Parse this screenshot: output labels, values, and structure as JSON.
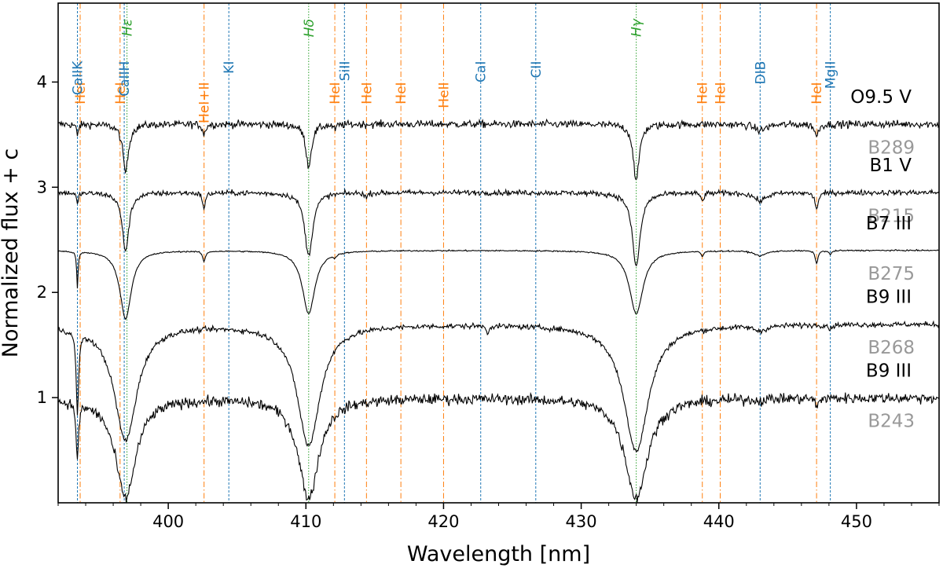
{
  "chart_data": {
    "type": "line",
    "xlabel": "Wavelength [nm]",
    "ylabel": "Normalized flux + c",
    "xlim": [
      392,
      456
    ],
    "ylim": [
      0,
      4.75
    ],
    "xticks": [
      400,
      410,
      420,
      430,
      440,
      450
    ],
    "yticks": [
      1,
      2,
      3,
      4
    ],
    "grid": false,
    "colors": {
      "spectrum": "#000000",
      "HeI": "#ff7f0e",
      "metal": "#1f77b4",
      "balmer": "#2ca02c",
      "star_id": "#999999"
    },
    "line_markers": [
      {
        "label": "HeI",
        "x": 393.6,
        "kind": "He",
        "y": 4.0
      },
      {
        "label": "CaIIK",
        "x": 393.4,
        "kind": "metal",
        "y": 4.2
      },
      {
        "label": "HeI",
        "x": 396.5,
        "kind": "He",
        "y": 4.0
      },
      {
        "label": "CaIIH",
        "x": 396.8,
        "kind": "metal",
        "y": 4.2
      },
      {
        "label": "Hε",
        "x": 397.0,
        "kind": "balmer",
        "y": 4.6
      },
      {
        "label": "HeI+II",
        "x": 402.6,
        "kind": "He",
        "y": 4.0
      },
      {
        "label": "KI",
        "x": 404.4,
        "kind": "metal",
        "y": 4.2
      },
      {
        "label": "Hδ",
        "x": 410.2,
        "kind": "balmer",
        "y": 4.6
      },
      {
        "label": "HeI",
        "x": 412.1,
        "kind": "He",
        "y": 4.0
      },
      {
        "label": "SiII",
        "x": 412.8,
        "kind": "metal",
        "y": 4.2
      },
      {
        "label": "HeI",
        "x": 414.4,
        "kind": "He",
        "y": 4.0
      },
      {
        "label": "HeI",
        "x": 416.9,
        "kind": "He",
        "y": 4.0
      },
      {
        "label": "HeII",
        "x": 420.0,
        "kind": "He",
        "y": 4.0
      },
      {
        "label": "CaI",
        "x": 422.7,
        "kind": "metal",
        "y": 4.2
      },
      {
        "label": "CII",
        "x": 426.7,
        "kind": "metal",
        "y": 4.2
      },
      {
        "label": "Hγ",
        "x": 434.0,
        "kind": "balmer",
        "y": 4.6
      },
      {
        "label": "HeI",
        "x": 438.8,
        "kind": "He",
        "y": 4.0
      },
      {
        "label": "HeI",
        "x": 440.1,
        "kind": "He",
        "y": 4.0
      },
      {
        "label": "DIB",
        "x": 443.0,
        "kind": "metal",
        "y": 4.2
      },
      {
        "label": "HeI",
        "x": 447.1,
        "kind": "He",
        "y": 4.0
      },
      {
        "label": "MgII",
        "x": 448.1,
        "kind": "metal",
        "y": 4.2
      }
    ],
    "series": [
      {
        "spectral_type": "O9.5 V",
        "star": "B289",
        "continuum": 3.6,
        "noise": 0.035,
        "lines": [
          [
            393.4,
            0.12,
            0.07
          ],
          [
            396.9,
            0.45,
            0.25
          ],
          [
            402.6,
            0.1,
            0.12
          ],
          [
            410.2,
            0.4,
            0.25
          ],
          [
            412.1,
            0.05,
            0.1
          ],
          [
            434.0,
            0.55,
            0.25
          ],
          [
            443.0,
            0.06,
            0.5
          ],
          [
            447.1,
            0.12,
            0.15
          ]
        ]
      },
      {
        "spectral_type": "B1 V",
        "star": "B215",
        "continuum": 2.95,
        "noise": 0.025,
        "lines": [
          [
            393.4,
            0.12,
            0.07
          ],
          [
            396.9,
            0.55,
            0.3
          ],
          [
            402.6,
            0.15,
            0.12
          ],
          [
            410.2,
            0.6,
            0.35
          ],
          [
            414.4,
            0.05,
            0.1
          ],
          [
            434.0,
            0.7,
            0.35
          ],
          [
            438.8,
            0.08,
            0.12
          ],
          [
            443.0,
            0.08,
            0.5
          ],
          [
            447.1,
            0.15,
            0.15
          ]
        ]
      },
      {
        "spectral_type": "B7 III",
        "star": "B275",
        "continuum": 2.4,
        "noise": 0.006,
        "lines": [
          [
            393.4,
            0.35,
            0.06
          ],
          [
            396.9,
            0.65,
            0.5
          ],
          [
            402.6,
            0.1,
            0.12
          ],
          [
            410.2,
            0.6,
            0.55
          ],
          [
            412.1,
            0.03,
            0.1
          ],
          [
            434.0,
            0.6,
            0.6
          ],
          [
            438.8,
            0.05,
            0.1
          ],
          [
            443.0,
            0.05,
            0.5
          ],
          [
            447.1,
            0.12,
            0.12
          ],
          [
            448.1,
            0.04,
            0.1
          ]
        ]
      },
      {
        "spectral_type": "B9 III",
        "star": "B268",
        "continuum": 1.7,
        "noise": 0.025,
        "lines": [
          [
            393.4,
            0.8,
            0.1
          ],
          [
            396.9,
            1.1,
            1.0
          ],
          [
            410.2,
            1.15,
            1.0
          ],
          [
            434.0,
            1.2,
            1.1
          ],
          [
            423.2,
            0.1,
            0.06
          ],
          [
            443.0,
            0.05,
            0.5
          ],
          [
            448.1,
            0.05,
            0.1
          ]
        ]
      },
      {
        "spectral_type": "B9 III",
        "star": "B243",
        "continuum": 1.0,
        "noise": 0.05,
        "lines": [
          [
            393.4,
            0.55,
            0.1
          ],
          [
            396.9,
            0.95,
            0.9
          ],
          [
            410.2,
            0.95,
            0.9
          ],
          [
            434.0,
            0.95,
            1.0
          ],
          [
            442.9,
            0.02,
            0.3
          ],
          [
            447.1,
            0.1,
            0.1
          ]
        ]
      }
    ]
  }
}
